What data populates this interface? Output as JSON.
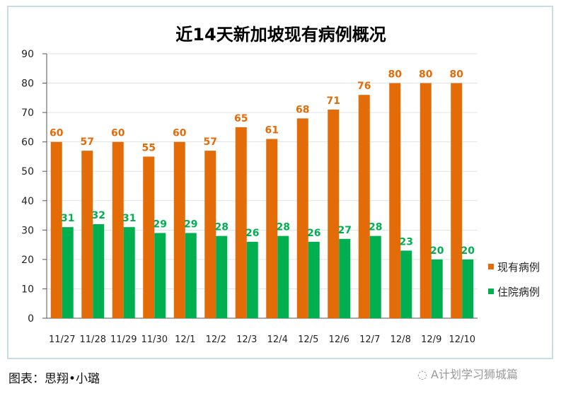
{
  "chart_data": {
    "type": "bar",
    "title": "近14天新加坡现有病例概况",
    "categories": [
      "11/27",
      "11/28",
      "11/29",
      "11/30",
      "12/1",
      "12/2",
      "12/3",
      "12/4",
      "12/5",
      "12/6",
      "12/7",
      "12/8",
      "12/9",
      "12/10"
    ],
    "series": [
      {
        "name": "现有病例",
        "color": "#e36c09",
        "values": [
          60,
          57,
          60,
          55,
          60,
          57,
          65,
          61,
          68,
          71,
          76,
          80,
          80,
          80
        ]
      },
      {
        "name": "住院病例",
        "color": "#00b050",
        "values": [
          31,
          32,
          31,
          29,
          29,
          28,
          26,
          28,
          26,
          27,
          28,
          23,
          20,
          20
        ]
      }
    ],
    "ylim": [
      0,
      90
    ],
    "yticks": [
      0,
      10,
      20,
      30,
      40,
      50,
      60,
      70,
      80,
      90
    ],
    "grid": true,
    "legend": "right",
    "xlabel": "",
    "ylabel": ""
  },
  "caption": "图表：思翔•小璐",
  "watermark": "A计划学习狮城篇"
}
